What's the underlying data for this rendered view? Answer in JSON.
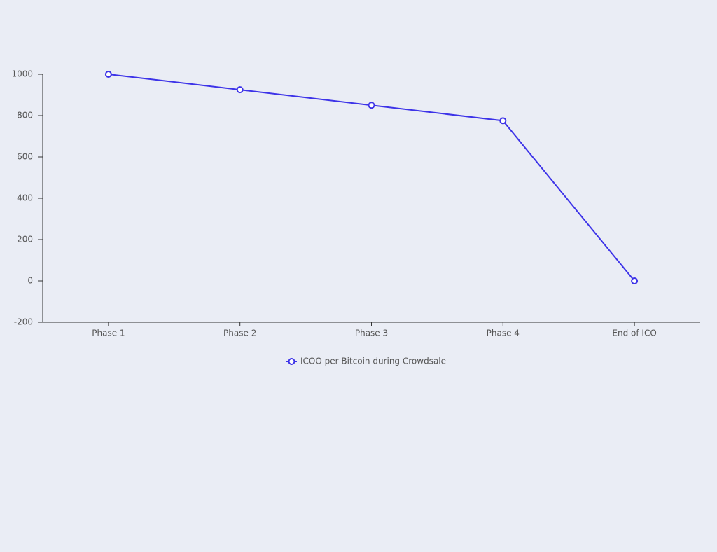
{
  "chart_data": {
    "type": "line",
    "categories": [
      "Phase 1",
      "Phase 2",
      "Phase 3",
      "Phase 4",
      "End of ICO"
    ],
    "series": [
      {
        "name": "ICOO per Bitcoin during Crowdsale",
        "color": "#3d33e8",
        "values": [
          1000,
          925,
          850,
          775,
          0
        ]
      }
    ],
    "ylim": [
      -200,
      1000
    ],
    "yticks": [
      -200,
      0,
      200,
      400,
      600,
      800,
      1000
    ],
    "grid": false,
    "legend": "bottom"
  }
}
